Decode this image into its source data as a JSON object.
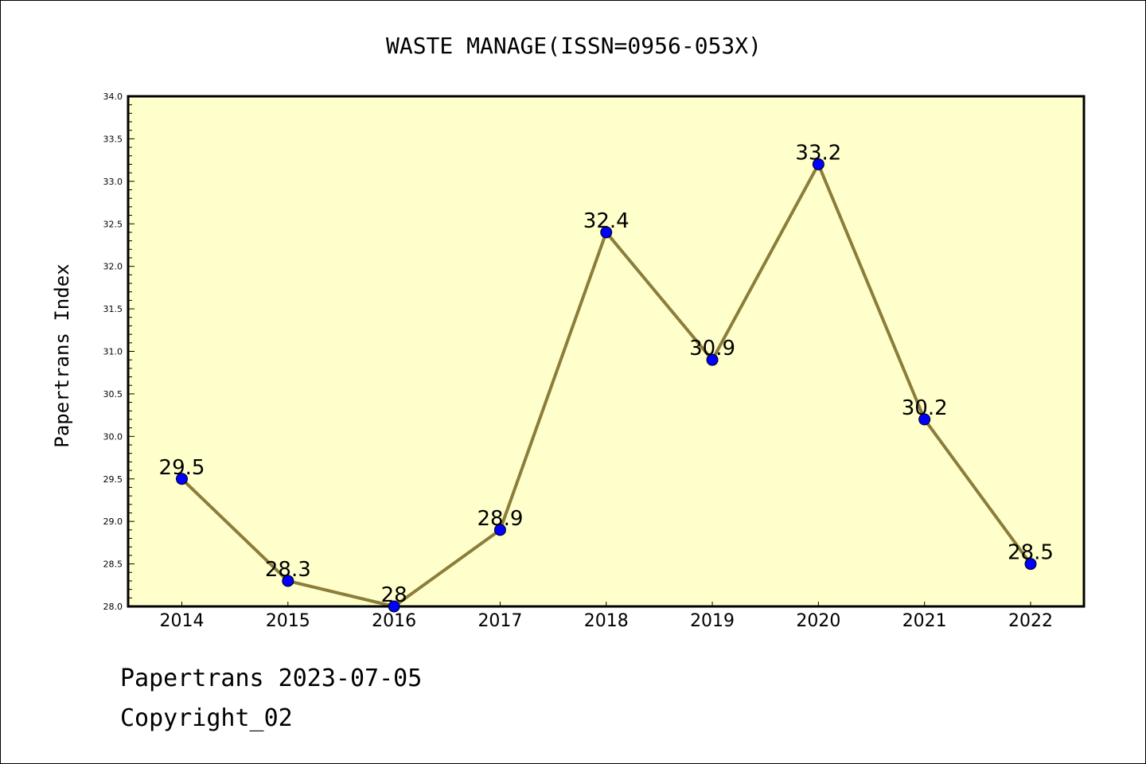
{
  "chart_data": {
    "type": "line",
    "title": "WASTE MANAGE(ISSN=0956-053X)",
    "xlabel": "",
    "ylabel": "Papertrans Index",
    "categories": [
      "2014",
      "2015",
      "2016",
      "2017",
      "2018",
      "2019",
      "2020",
      "2021",
      "2022"
    ],
    "series": [
      {
        "values": [
          29.5,
          28.3,
          28.0,
          28.9,
          32.4,
          30.9,
          33.2,
          30.2,
          28.5
        ],
        "labels": [
          "29.5",
          "28.3",
          "28",
          "28.9",
          "32.4",
          "30.9",
          "33.2",
          "30.2",
          "28.5"
        ]
      }
    ],
    "ylim": [
      28.0,
      34.0
    ],
    "yticks": [
      "28.0",
      "28.5",
      "29.0",
      "29.5",
      "30.0",
      "30.5",
      "31.0",
      "31.5",
      "32.0",
      "32.5",
      "33.0",
      "33.5",
      "34.0"
    ],
    "grid": false,
    "colors": {
      "plot_background": "#ffffcc",
      "line": "#8b7d3a",
      "marker": "#0000ff"
    }
  },
  "footer": {
    "line1": "Papertrans 2023-07-05",
    "line2": "Copyright_02"
  }
}
